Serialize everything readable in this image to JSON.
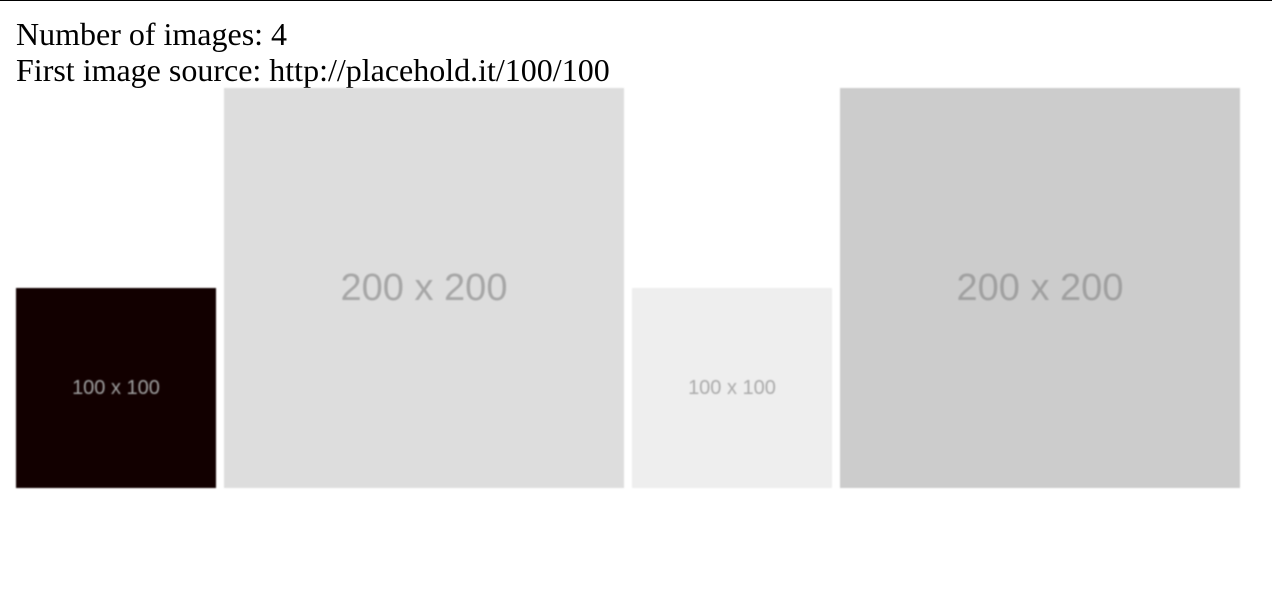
{
  "info": {
    "count_label": "Number of images:",
    "count_value": "4",
    "source_label": "First image source:",
    "source_value": "http://placehold.it/100/100"
  },
  "images": [
    {
      "label": "100 x 100",
      "bg": "#120000",
      "fg": "#a0a0a0"
    },
    {
      "label": "200 x 200",
      "bg": "#dddddd",
      "fg": "#a6a6a6"
    },
    {
      "label": "100 x 100",
      "bg": "#eeeeee",
      "fg": "#aaaaaa"
    },
    {
      "label": "200 x 200",
      "bg": "#cccccc",
      "fg": "#a0a0a0"
    }
  ]
}
